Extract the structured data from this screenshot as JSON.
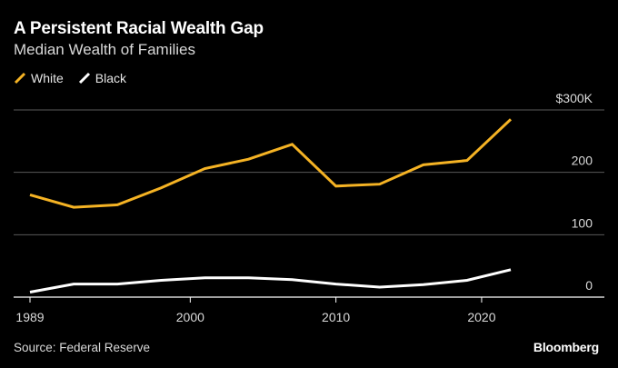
{
  "header": {
    "title": "A Persistent Racial Wealth Gap",
    "subtitle": "Median Wealth of Families"
  },
  "legend": [
    {
      "label": "White",
      "color": "#f5b324"
    },
    {
      "label": "Black",
      "color": "#ffffff"
    }
  ],
  "footer": {
    "source": "Source: Federal Reserve",
    "brand": "Bloomberg"
  },
  "chart_data": {
    "type": "line",
    "title": "A Persistent Racial Wealth Gap",
    "subtitle": "Median Wealth of Families",
    "xlabel": "",
    "ylabel": "",
    "xlim": [
      1989,
      2022
    ],
    "ylim": [
      0,
      300
    ],
    "x_ticks": [
      1989,
      2000,
      2010,
      2020
    ],
    "y_ticks": [
      0,
      100,
      200,
      300
    ],
    "y_tick_labels": [
      "0",
      "100",
      "200",
      "$300K"
    ],
    "grid": true,
    "legend_position": "top-left",
    "x": [
      1989,
      1992,
      1995,
      1998,
      2001,
      2004,
      2007,
      2010,
      2013,
      2016,
      2019,
      2022
    ],
    "series": [
      {
        "name": "White",
        "color": "#f5b324",
        "values": [
          164,
          144,
          148,
          175,
          206,
          221,
          245,
          178,
          181,
          212,
          219,
          285
        ]
      },
      {
        "name": "Black",
        "color": "#ffffff",
        "values": [
          8,
          21,
          21,
          27,
          31,
          31,
          28,
          21,
          16,
          20,
          27,
          44
        ]
      }
    ]
  }
}
